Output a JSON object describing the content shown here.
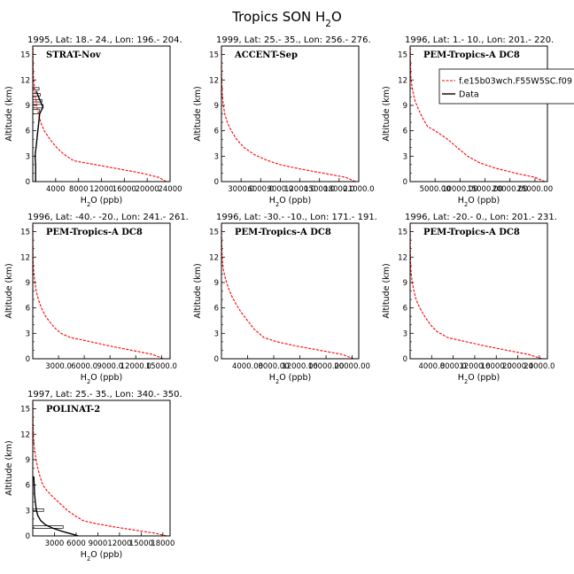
{
  "figure": {
    "title": "Tropics SON H2O",
    "legend": {
      "items": [
        "f.e15b03wch.F55W5SC.f09",
        "Data"
      ],
      "colors": [
        "#ff0000",
        "#000000"
      ]
    }
  },
  "chart_data": [
    {
      "type": "line",
      "title": "1995, Lat: 18.- 24., Lon: 196.- 204.",
      "campaign": "STRAT-Nov",
      "xlabel": "H2O (ppb)",
      "ylabel": "Altitude (km)",
      "xlim": [
        0,
        24000
      ],
      "ylim": [
        0,
        16
      ],
      "xticks": [
        "4000",
        "8000",
        "12000",
        "16000",
        "20000",
        "24000"
      ],
      "xtick_values": [
        4000,
        8000,
        12000,
        16000,
        20000,
        24000
      ],
      "yticks": [
        "0",
        "3",
        "6",
        "9",
        "12",
        "15"
      ],
      "series": [
        {
          "name": "f.e15b03wch.F55W5SC.f09",
          "color": "#ff0000",
          "style": "dashed",
          "points": [
            [
              23300,
              0
            ],
            [
              22000,
              0.5
            ],
            [
              19000,
              1
            ],
            [
              15000,
              1.5
            ],
            [
              11000,
              2
            ],
            [
              7600,
              2.4
            ],
            [
              6800,
              2.6
            ],
            [
              5500,
              3.2
            ],
            [
              4200,
              4
            ],
            [
              3000,
              5
            ],
            [
              2000,
              6
            ],
            [
              1400,
              7
            ],
            [
              1000,
              8
            ],
            [
              700,
              9
            ],
            [
              500,
              10
            ],
            [
              300,
              11
            ],
            [
              150,
              12
            ],
            [
              80,
              13
            ],
            [
              50,
              14
            ],
            [
              40,
              15
            ],
            [
              30,
              15.8
            ]
          ]
        },
        {
          "name": "Data",
          "color": "#000000",
          "style": "solid",
          "points": [
            [
              500,
              0
            ],
            [
              500,
              1
            ],
            [
              500,
              2
            ],
            [
              400,
              3
            ],
            [
              1200,
              8
            ],
            [
              1800,
              8.8
            ],
            [
              1500,
              9.2
            ],
            [
              1000,
              10
            ],
            [
              600,
              10.7
            ]
          ]
        }
      ],
      "boxes": [
        [
          0,
          1200,
          8,
          8.5
        ],
        [
          0,
          1800,
          8.7,
          9.1
        ],
        [
          0,
          1600,
          9.4,
          9.7
        ],
        [
          0,
          1300,
          10.1,
          10.4
        ],
        [
          0,
          1100,
          10.8,
          11.1
        ]
      ]
    },
    {
      "type": "line",
      "title": "1999, Lat: 25.- 35., Lon: 256.- 276.",
      "campaign": "ACCENT-Sep",
      "xlabel": "H2O (ppb)",
      "ylabel": "Altitude (km)",
      "xlim": [
        0,
        21000
      ],
      "ylim": [
        0,
        16
      ],
      "xticks": [
        "3000.0",
        "6000.0",
        "9000.0",
        "12000.0",
        "15000.0",
        "18000.0",
        "21000.0"
      ],
      "xtick_values": [
        3000,
        6000,
        9000,
        12000,
        15000,
        18000,
        21000
      ],
      "yticks": [
        "0",
        "3",
        "6",
        "9",
        "12",
        "15"
      ],
      "series": [
        {
          "name": "f.e15b03wch.F55W5SC.f09",
          "color": "#ff0000",
          "style": "dashed",
          "points": [
            [
              20500,
              0
            ],
            [
              19000,
              0.5
            ],
            [
              15500,
              1
            ],
            [
              12000,
              1.5
            ],
            [
              9000,
              2
            ],
            [
              7000,
              2.5
            ],
            [
              5000,
              3.2
            ],
            [
              3500,
              4
            ],
            [
              2300,
              5
            ],
            [
              1500,
              6
            ],
            [
              900,
              7
            ],
            [
              500,
              8
            ],
            [
              300,
              9
            ],
            [
              150,
              10
            ],
            [
              80,
              11
            ],
            [
              50,
              12
            ],
            [
              30,
              13
            ],
            [
              20,
              14
            ],
            [
              15,
              15.8
            ]
          ]
        }
      ]
    },
    {
      "type": "line",
      "title": "1996, Lat: 1.- 10., Lon: 201.- 220.",
      "campaign": "PEM-Tropics-A DC8",
      "xlabel": "H2O (ppb)",
      "ylabel": "Altitude (km)",
      "xlim": [
        0,
        27500
      ],
      "ylim": [
        0,
        16
      ],
      "xticks": [
        "5000.00",
        "10000.00",
        "15000.00",
        "20000.00",
        "25000.00"
      ],
      "xtick_values": [
        5000,
        10000,
        15000,
        20000,
        25000
      ],
      "yticks": [
        "0",
        "3",
        "6",
        "9",
        "12",
        "15"
      ],
      "series": [
        {
          "name": "f.e15b03wch.F55W5SC.f09",
          "color": "#ff0000",
          "style": "dashed",
          "points": [
            [
              27000,
              0
            ],
            [
              25000,
              0.5
            ],
            [
              21000,
              1
            ],
            [
              17000,
              1.6
            ],
            [
              14000,
              2.2
            ],
            [
              11500,
              3
            ],
            [
              9500,
              4
            ],
            [
              7500,
              5
            ],
            [
              5000,
              6
            ],
            [
              3500,
              6.5
            ],
            [
              2500,
              7.5
            ],
            [
              1700,
              8.5
            ],
            [
              1000,
              9.5
            ],
            [
              600,
              10.5
            ],
            [
              300,
              11.5
            ],
            [
              150,
              12.5
            ],
            [
              80,
              13.5
            ],
            [
              50,
              14.5
            ],
            [
              30,
              15.8
            ]
          ]
        }
      ]
    },
    {
      "type": "line",
      "title": "1996, Lat: -40.- -20., Lon: 241.- 261.",
      "campaign": "PEM-Tropics-A DC8",
      "xlabel": "H2O (ppb)",
      "ylabel": "Altitude (km)",
      "xlim": [
        0,
        16000
      ],
      "ylim": [
        0,
        16
      ],
      "xticks": [
        "3000.0",
        "6000.0",
        "9000.0",
        "12000.0",
        "15000.0"
      ],
      "xtick_values": [
        3000,
        6000,
        9000,
        12000,
        15000
      ],
      "yticks": [
        "0",
        "3",
        "6",
        "9",
        "12",
        "15"
      ],
      "series": [
        {
          "name": "f.e15b03wch.F55W5SC.f09",
          "color": "#ff0000",
          "style": "dashed",
          "points": [
            [
              15200,
              0
            ],
            [
              14000,
              0.5
            ],
            [
              11500,
              1
            ],
            [
              9000,
              1.5
            ],
            [
              6800,
              2
            ],
            [
              4400,
              2.5
            ],
            [
              3300,
              3
            ],
            [
              2700,
              3.5
            ],
            [
              2100,
              4.2
            ],
            [
              1500,
              5
            ],
            [
              1000,
              6
            ],
            [
              650,
              7
            ],
            [
              400,
              8
            ],
            [
              250,
              9
            ],
            [
              120,
              10
            ],
            [
              60,
              11
            ],
            [
              30,
              12
            ],
            [
              20,
              13
            ],
            [
              15,
              14
            ],
            [
              10,
              15.8
            ]
          ]
        }
      ]
    },
    {
      "type": "line",
      "title": "1996, Lat: -30.- -10., Lon: 171.- 191.",
      "campaign": "PEM-Tropics-A DC8",
      "xlabel": "H2O (ppb)",
      "ylabel": "Altitude (km)",
      "xlim": [
        0,
        21000
      ],
      "ylim": [
        0,
        16
      ],
      "xticks": [
        "4000.00",
        "8000.00",
        "12000.00",
        "16000.00",
        "20000.00"
      ],
      "xtick_values": [
        4000,
        8000,
        12000,
        16000,
        20000
      ],
      "yticks": [
        "0",
        "3",
        "6",
        "9",
        "12",
        "15"
      ],
      "series": [
        {
          "name": "f.e15b03wch.F55W5SC.f09",
          "color": "#ff0000",
          "style": "dashed",
          "points": [
            [
              20200,
              0
            ],
            [
              18500,
              0.5
            ],
            [
              15000,
              1
            ],
            [
              11500,
              1.5
            ],
            [
              8500,
              2
            ],
            [
              6500,
              2.5
            ],
            [
              5000,
              3.5
            ],
            [
              4000,
              4.5
            ],
            [
              3000,
              5.5
            ],
            [
              2200,
              6.5
            ],
            [
              1500,
              7.5
            ],
            [
              1000,
              8.5
            ],
            [
              600,
              9.5
            ],
            [
              300,
              10.5
            ],
            [
              150,
              11.5
            ],
            [
              80,
              12.5
            ],
            [
              50,
              13.5
            ],
            [
              30,
              14.5
            ],
            [
              20,
              15.8
            ]
          ]
        }
      ]
    },
    {
      "type": "line",
      "title": "1996, Lat: -20.- 0., Lon: 201.- 231.",
      "campaign": "PEM-Tropics-A DC8",
      "xlabel": "H2O (ppb)",
      "ylabel": "Altitude (km)",
      "xlim": [
        0,
        25500
      ],
      "ylim": [
        0,
        16
      ],
      "xticks": [
        "4000.0",
        "8000.0",
        "12000.0",
        "16000.0",
        "20000.0",
        "24000.0"
      ],
      "xtick_values": [
        4000,
        8000,
        12000,
        16000,
        20000,
        24000
      ],
      "yticks": [
        "0",
        "3",
        "6",
        "9",
        "12",
        "15"
      ],
      "series": [
        {
          "name": "f.e15b03wch.F55W5SC.f09",
          "color": "#ff0000",
          "style": "dashed",
          "points": [
            [
              24500,
              0
            ],
            [
              22000,
              0.5
            ],
            [
              18000,
              1
            ],
            [
              14000,
              1.5
            ],
            [
              10500,
              2
            ],
            [
              7000,
              2.5
            ],
            [
              5000,
              3.2
            ],
            [
              3800,
              4
            ],
            [
              2700,
              5
            ],
            [
              1800,
              6
            ],
            [
              1100,
              7
            ],
            [
              700,
              8
            ],
            [
              400,
              9
            ],
            [
              200,
              10
            ],
            [
              100,
              11
            ],
            [
              60,
              12
            ],
            [
              40,
              13
            ],
            [
              25,
              14
            ],
            [
              15,
              15.8
            ]
          ]
        }
      ]
    },
    {
      "type": "line",
      "title": "1997, Lat: 25.- 35., Lon: 340.- 350.",
      "campaign": "POLINAT-2",
      "xlabel": "H2O (ppb)",
      "ylabel": "Altitude (km)",
      "xlim": [
        0,
        19000
      ],
      "ylim": [
        0,
        16
      ],
      "xticks": [
        "3000",
        "6000",
        "9000",
        "12000",
        "15000",
        "18000"
      ],
      "xtick_values": [
        3000,
        6000,
        9000,
        12000,
        15000,
        18000
      ],
      "yticks": [
        "0",
        "3",
        "6",
        "9",
        "12",
        "15"
      ],
      "series": [
        {
          "name": "f.e15b03wch.F55W5SC.f09",
          "color": "#ff0000",
          "style": "dashed",
          "points": [
            [
              18500,
              0
            ],
            [
              17000,
              0.3
            ],
            [
              14000,
              0.7
            ],
            [
              11000,
              1.1
            ],
            [
              8500,
              1.5
            ],
            [
              7000,
              1.8
            ],
            [
              6000,
              2.3
            ],
            [
              4800,
              3
            ],
            [
              3800,
              3.8
            ],
            [
              2800,
              4.6
            ],
            [
              2000,
              5.3
            ],
            [
              1400,
              6
            ],
            [
              1000,
              7
            ],
            [
              700,
              8
            ],
            [
              450,
              9
            ],
            [
              280,
              10
            ],
            [
              150,
              11
            ],
            [
              80,
              12
            ],
            [
              50,
              13
            ],
            [
              30,
              14
            ],
            [
              20,
              15.8
            ]
          ]
        },
        {
          "name": "Data",
          "color": "#000000",
          "style": "solid",
          "points": [
            [
              6300,
              0
            ],
            [
              5500,
              0.2
            ],
            [
              4200,
              0.5
            ],
            [
              2800,
              0.9
            ],
            [
              1800,
              1.3
            ],
            [
              1100,
              1.8
            ],
            [
              700,
              2.4
            ],
            [
              500,
              3
            ],
            [
              350,
              4
            ],
            [
              250,
              5
            ],
            [
              200,
              6
            ],
            [
              150,
              7
            ]
          ]
        }
      ],
      "boxes": [
        [
          0,
          1500,
          2.9,
          3.2
        ],
        [
          0,
          4200,
          0.9,
          1.2
        ]
      ]
    }
  ]
}
